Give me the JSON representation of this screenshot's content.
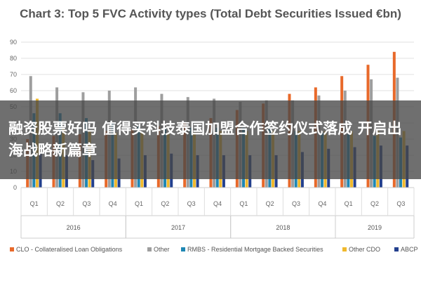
{
  "chart_data": {
    "type": "bar",
    "title": "Chart 3: Top 5 FVC Activity types (Total Debt Securities Issued €bn)",
    "ylim": [
      0,
      90
    ],
    "yticks": [
      0,
      10,
      20,
      30,
      40,
      50,
      60,
      70,
      80,
      90
    ],
    "categories": [
      "Q1",
      "Q2",
      "Q3",
      "Q4",
      "Q1",
      "Q2",
      "Q3",
      "Q4",
      "Q1",
      "Q2",
      "Q3",
      "Q4",
      "Q1",
      "Q2",
      "Q3"
    ],
    "years": [
      {
        "label": "2016",
        "start": 0,
        "count": 4
      },
      {
        "label": "2017",
        "start": 4,
        "count": 4
      },
      {
        "label": "2018",
        "start": 8,
        "count": 4
      },
      {
        "label": "2019",
        "start": 12,
        "count": 3
      }
    ],
    "legend_position": "bottom",
    "grid": true,
    "series": [
      {
        "name": "CLO - Collateralised Loan Obligations",
        "color": "#E8692A",
        "values": [
          30,
          32,
          33,
          35,
          36,
          38,
          40,
          43,
          48,
          52,
          58,
          62,
          69,
          76,
          84
        ]
      },
      {
        "name": "Other",
        "color": "#9E9E9E",
        "values": [
          69,
          62,
          59,
          60,
          62,
          58,
          56,
          55,
          53,
          54,
          54,
          57,
          60,
          67,
          68
        ]
      },
      {
        "name": "RMBS - Residential Mortgage Backed Securities",
        "color": "#1F87B4",
        "values": [
          46,
          46,
          43,
          40,
          38,
          37,
          37,
          37,
          37,
          37,
          35,
          34,
          33,
          32,
          31
        ]
      },
      {
        "name": "Other CDO",
        "color": "#F0B92D",
        "values": [
          55,
          37,
          35,
          34,
          34,
          34,
          34,
          35,
          35,
          35,
          35,
          35,
          35,
          35,
          35
        ]
      },
      {
        "name": "ABCP",
        "color": "#23408E",
        "values": [
          22,
          20,
          17,
          18,
          20,
          21,
          20,
          20,
          20,
          20,
          22,
          24,
          25,
          26,
          26
        ]
      }
    ]
  },
  "overlay": {
    "text": "融资股票好吗 值得买科技泰国加盟合作签约仪式落成 开启出海战略新篇章"
  }
}
